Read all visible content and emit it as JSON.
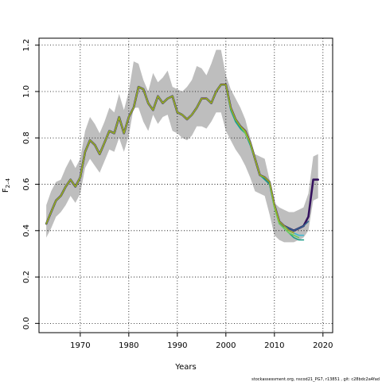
{
  "chart_data": {
    "type": "line",
    "xlabel": "Years",
    "ylabel_main": "F",
    "ylabel_sub": "2–4",
    "xlim": [
      1961.5,
      2022
    ],
    "ylim": [
      -0.04,
      1.23
    ],
    "x_ticks": [
      1970,
      1980,
      1990,
      2000,
      2010,
      2020
    ],
    "x_tick_labels": [
      "1970",
      "1980",
      "1990",
      "2000",
      "2010",
      "2020"
    ],
    "y_ticks": [
      0.0,
      0.2,
      0.4,
      0.6,
      0.8,
      1.0,
      1.2
    ],
    "y_tick_labels": [
      "0.0",
      "0.2",
      "0.4",
      "0.6",
      "0.8",
      "1.0",
      "1.2"
    ],
    "grid": true,
    "footer": "stockassessment.org,  nscod21_PG7,  r13851 ,  git:  c28bdc2a4fad",
    "band": {
      "color": "#bebebe",
      "x": [
        1963,
        1964,
        1965,
        1966,
        1967,
        1968,
        1969,
        1970,
        1971,
        1972,
        1973,
        1974,
        1975,
        1976,
        1977,
        1978,
        1979,
        1980,
        1981,
        1982,
        1983,
        1984,
        1985,
        1986,
        1987,
        1988,
        1989,
        1990,
        1991,
        1992,
        1993,
        1994,
        1995,
        1996,
        1997,
        1998,
        1999,
        2000,
        2001,
        2002,
        2003,
        2004,
        2005,
        2006,
        2007,
        2008,
        2009,
        2010,
        2011,
        2012,
        2013,
        2014,
        2015,
        2016,
        2017,
        2018,
        2019
      ],
      "upper": [
        0.51,
        0.57,
        0.61,
        0.62,
        0.67,
        0.71,
        0.67,
        0.71,
        0.83,
        0.89,
        0.86,
        0.82,
        0.87,
        0.93,
        0.91,
        0.99,
        0.92,
        1.0,
        1.13,
        1.12,
        1.05,
        1.0,
        1.08,
        1.04,
        1.06,
        1.09,
        1.02,
        1.01,
        1.0,
        1.02,
        1.05,
        1.11,
        1.1,
        1.07,
        1.12,
        1.18,
        1.18,
        1.07,
        1.01,
        0.97,
        0.93,
        0.88,
        0.8,
        0.73,
        0.72,
        0.71,
        0.62,
        0.52,
        0.5,
        0.49,
        0.48,
        0.48,
        0.49,
        0.5,
        0.56,
        0.72,
        0.73
      ],
      "lower": [
        0.37,
        0.41,
        0.46,
        0.48,
        0.51,
        0.55,
        0.52,
        0.56,
        0.67,
        0.71,
        0.68,
        0.65,
        0.7,
        0.75,
        0.74,
        0.8,
        0.74,
        0.81,
        0.93,
        0.93,
        0.87,
        0.83,
        0.9,
        0.86,
        0.89,
        0.9,
        0.83,
        0.82,
        0.8,
        0.79,
        0.81,
        0.85,
        0.85,
        0.84,
        0.87,
        0.91,
        0.91,
        0.83,
        0.79,
        0.75,
        0.72,
        0.68,
        0.63,
        0.57,
        0.56,
        0.55,
        0.47,
        0.38,
        0.36,
        0.35,
        0.35,
        0.35,
        0.36,
        0.37,
        0.4,
        0.53,
        0.54
      ]
    },
    "series": [
      {
        "color": "#35125e",
        "width": 2.6,
        "x": [
          1963,
          1964,
          1965,
          1966,
          1967,
          1968,
          1969,
          1970,
          1971,
          1972,
          1973,
          1974,
          1975,
          1976,
          1977,
          1978,
          1979,
          1980,
          1981,
          1982,
          1983,
          1984,
          1985,
          1986,
          1987,
          1988,
          1989,
          1990,
          1991,
          1992,
          1993,
          1994,
          1995,
          1996,
          1997,
          1998,
          1999,
          2000,
          2001,
          2002,
          2003,
          2004,
          2005,
          2006,
          2007,
          2008,
          2009,
          2010,
          2011,
          2012,
          2013,
          2014,
          2015,
          2016,
          2017,
          2018,
          2019
        ],
        "values": [
          0.43,
          0.48,
          0.53,
          0.55,
          0.59,
          0.62,
          0.59,
          0.63,
          0.74,
          0.79,
          0.77,
          0.73,
          0.78,
          0.83,
          0.82,
          0.89,
          0.82,
          0.89,
          0.93,
          1.02,
          1.01,
          0.95,
          0.92,
          0.98,
          0.95,
          0.97,
          0.98,
          0.91,
          0.9,
          0.88,
          0.9,
          0.93,
          0.97,
          0.97,
          0.95,
          1.0,
          1.03,
          1.03,
          0.93,
          0.88,
          0.85,
          0.83,
          0.78,
          0.71,
          0.64,
          0.63,
          0.61,
          0.51,
          0.44,
          0.42,
          0.41,
          0.4,
          0.41,
          0.42,
          0.46,
          0.62,
          0.62
        ]
      },
      {
        "color": "#33638d",
        "width": 1.6,
        "x": [
          1963,
          1964,
          1965,
          1966,
          1967,
          1968,
          1969,
          1970,
          1971,
          1972,
          1973,
          1974,
          1975,
          1976,
          1977,
          1978,
          1979,
          1980,
          1981,
          1982,
          1983,
          1984,
          1985,
          1986,
          1987,
          1988,
          1989,
          1990,
          1991,
          1992,
          1993,
          1994,
          1995,
          1996,
          1997,
          1998,
          1999,
          2000,
          2001,
          2002,
          2003,
          2004,
          2005,
          2006,
          2007,
          2008,
          2009,
          2010,
          2011,
          2012,
          2013,
          2014,
          2015,
          2016,
          2017
        ],
        "values": [
          0.43,
          0.48,
          0.53,
          0.55,
          0.59,
          0.62,
          0.59,
          0.63,
          0.74,
          0.79,
          0.77,
          0.73,
          0.78,
          0.83,
          0.82,
          0.89,
          0.82,
          0.89,
          0.93,
          1.02,
          1.01,
          0.95,
          0.92,
          0.98,
          0.95,
          0.97,
          0.98,
          0.91,
          0.9,
          0.88,
          0.9,
          0.93,
          0.97,
          0.97,
          0.95,
          1.0,
          1.03,
          1.03,
          0.93,
          0.88,
          0.85,
          0.83,
          0.78,
          0.71,
          0.64,
          0.63,
          0.61,
          0.51,
          0.44,
          0.42,
          0.41,
          0.4,
          0.41,
          0.42,
          0.44
        ]
      },
      {
        "color": "#3fb9d0",
        "width": 1.6,
        "x": [
          1963,
          1964,
          1965,
          1966,
          1967,
          1968,
          1969,
          1970,
          1971,
          1972,
          1973,
          1974,
          1975,
          1976,
          1977,
          1978,
          1979,
          1980,
          1981,
          1982,
          1983,
          1984,
          1985,
          1986,
          1987,
          1988,
          1989,
          1990,
          1991,
          1992,
          1993,
          1994,
          1995,
          1996,
          1997,
          1998,
          1999,
          2000,
          2001,
          2002,
          2003,
          2004,
          2005,
          2006,
          2007,
          2008,
          2009,
          2010,
          2011,
          2012,
          2013,
          2014,
          2015,
          2016
        ],
        "values": [
          0.43,
          0.48,
          0.53,
          0.55,
          0.59,
          0.62,
          0.59,
          0.63,
          0.74,
          0.79,
          0.77,
          0.73,
          0.78,
          0.83,
          0.82,
          0.89,
          0.82,
          0.89,
          0.93,
          1.02,
          1.01,
          0.95,
          0.92,
          0.98,
          0.95,
          0.97,
          0.98,
          0.91,
          0.9,
          0.88,
          0.9,
          0.93,
          0.97,
          0.97,
          0.95,
          1.0,
          1.03,
          1.03,
          0.93,
          0.87,
          0.84,
          0.82,
          0.78,
          0.71,
          0.64,
          0.63,
          0.61,
          0.51,
          0.44,
          0.42,
          0.4,
          0.39,
          0.38,
          0.38
        ]
      },
      {
        "color": "#1f9e89",
        "width": 1.6,
        "x": [
          1963,
          1964,
          1965,
          1966,
          1967,
          1968,
          1969,
          1970,
          1971,
          1972,
          1973,
          1974,
          1975,
          1976,
          1977,
          1978,
          1979,
          1980,
          1981,
          1982,
          1983,
          1984,
          1985,
          1986,
          1987,
          1988,
          1989,
          1990,
          1991,
          1992,
          1993,
          1994,
          1995,
          1996,
          1997,
          1998,
          1999,
          2000,
          2001,
          2002,
          2003,
          2004,
          2005,
          2006,
          2007,
          2008,
          2009,
          2010,
          2011,
          2012,
          2013,
          2014,
          2015,
          2016
        ],
        "values": [
          0.43,
          0.48,
          0.53,
          0.55,
          0.59,
          0.62,
          0.59,
          0.63,
          0.74,
          0.79,
          0.77,
          0.73,
          0.78,
          0.83,
          0.82,
          0.89,
          0.82,
          0.89,
          0.93,
          1.02,
          1.01,
          0.95,
          0.92,
          0.98,
          0.95,
          0.97,
          0.98,
          0.91,
          0.9,
          0.88,
          0.9,
          0.93,
          0.97,
          0.97,
          0.95,
          1.0,
          1.03,
          1.03,
          0.92,
          0.87,
          0.84,
          0.82,
          0.77,
          0.71,
          0.64,
          0.62,
          0.6,
          0.5,
          0.43,
          0.41,
          0.39,
          0.37,
          0.36,
          0.36
        ]
      },
      {
        "color": "#6ece58",
        "width": 1.6,
        "x": [
          1963,
          1964,
          1965,
          1966,
          1967,
          1968,
          1969,
          1970,
          1971,
          1972,
          1973,
          1974,
          1975,
          1976,
          1977,
          1978,
          1979,
          1980,
          1981,
          1982,
          1983,
          1984,
          1985,
          1986,
          1987,
          1988,
          1989,
          1990,
          1991,
          1992,
          1993,
          1994,
          1995,
          1996,
          1997,
          1998,
          1999,
          2000,
          2001,
          2002,
          2003,
          2004,
          2005,
          2006,
          2007,
          2008,
          2009,
          2010,
          2011,
          2012,
          2013,
          2014,
          2015
        ],
        "values": [
          0.43,
          0.48,
          0.53,
          0.55,
          0.59,
          0.62,
          0.59,
          0.63,
          0.74,
          0.79,
          0.77,
          0.73,
          0.78,
          0.83,
          0.82,
          0.89,
          0.82,
          0.89,
          0.93,
          1.02,
          1.01,
          0.95,
          0.92,
          0.98,
          0.95,
          0.97,
          0.98,
          0.91,
          0.9,
          0.88,
          0.9,
          0.93,
          0.97,
          0.97,
          0.95,
          1.0,
          1.03,
          1.03,
          0.93,
          0.88,
          0.85,
          0.82,
          0.78,
          0.71,
          0.64,
          0.63,
          0.61,
          0.5,
          0.43,
          0.41,
          0.39,
          0.38,
          0.37
        ]
      },
      {
        "color": "#9aa81f",
        "width": 1.6,
        "x": [
          1963,
          1964,
          1965,
          1966,
          1967,
          1968,
          1969,
          1970,
          1971,
          1972,
          1973,
          1974,
          1975,
          1976,
          1977,
          1978,
          1979,
          1980,
          1981,
          1982,
          1983,
          1984,
          1985,
          1986,
          1987,
          1988,
          1989,
          1990,
          1991,
          1992,
          1993,
          1994,
          1995,
          1996,
          1997,
          1998,
          1999,
          2000,
          2001,
          2002,
          2003,
          2004,
          2005,
          2006,
          2007,
          2008,
          2009,
          2010,
          2011,
          2012,
          2013,
          2014
        ],
        "values": [
          0.43,
          0.48,
          0.53,
          0.55,
          0.59,
          0.62,
          0.59,
          0.63,
          0.74,
          0.79,
          0.77,
          0.73,
          0.78,
          0.83,
          0.82,
          0.89,
          0.82,
          0.89,
          0.93,
          1.02,
          1.01,
          0.95,
          0.92,
          0.98,
          0.95,
          0.97,
          0.98,
          0.91,
          0.9,
          0.88,
          0.9,
          0.93,
          0.97,
          0.97,
          0.95,
          1.0,
          1.03,
          1.03,
          0.93,
          0.88,
          0.85,
          0.83,
          0.78,
          0.71,
          0.64,
          0.63,
          0.61,
          0.51,
          0.44,
          0.42,
          0.4,
          0.39
        ]
      }
    ]
  }
}
